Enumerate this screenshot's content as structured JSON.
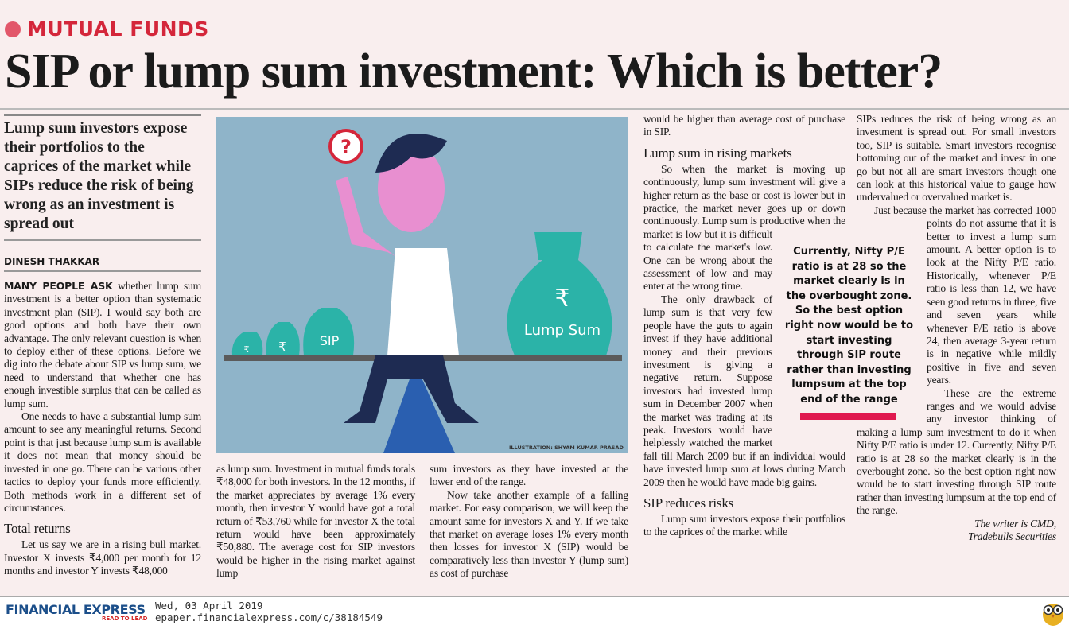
{
  "kicker": "MUTUAL FUNDS",
  "headline": "SIP or lump sum investment: Which is better?",
  "deck": "Lump sum investors expose their portfolios to the caprices of the market while SIPs reduce the risk of being wrong as an investment is spread out",
  "byline": "DINESH THAKKAR",
  "illustration": {
    "question_mark": "?",
    "rupee": "₹",
    "sip_label": "SIP",
    "lump_label": "Lump Sum",
    "credit": "ILLUSTRATION: SHYAM KUMAR PRASAD",
    "colors": {
      "background": "#8fb4c9",
      "bag": "#2bb3a8",
      "shirt": "#ffffff",
      "skin": "#e88fd0"
    }
  },
  "col1": {
    "lead": "MANY PEOPLE ASK",
    "p1": " whether lump sum investment is a better option than systematic investment plan (SIP). I would say both are good options and both have their own advantage. The only relevant question is when to deploy either of these options. Before we dig into the debate about SIP vs lump sum, we need to understand that whether one has enough investible surplus that can be called as lump sum.",
    "p2": "One needs to have a substantial lump sum amount to see any meaningful returns. Second point is that just because lump sum is available it does not mean that money should be invested in one go. There can be various other tactics to deploy your funds more efficiently. Both methods work in a different set of circumstances.",
    "h1": "Total returns",
    "p3": "Let us say we are in a rising bull market. Investor X invests ₹4,000 per month for 12 months and investor Y invests ₹48,000"
  },
  "col2": {
    "p1": "as lump sum. Investment in mutual funds totals ₹48,000 for both investors. In the 12 months, if the market appreciates by average 1% every month, then investor Y would have got a total return of ₹53,760 while for investor X the total return would have been approximately ₹50,880. The average cost for SIP investors would be higher in the rising market against lump"
  },
  "col3": {
    "p1": "sum investors as they have invested at the lower end of the range.",
    "p2": "Now take another example of a falling market. For easy comparison, we will keep the amount same for investors X and Y. If we take that market on average loses 1% every month then losses for investor X (SIP) would be comparatively less than investor Y (lump sum) as cost of purchase"
  },
  "col4": {
    "p1": "would be higher than average cost of purchase in SIP.",
    "h1": "Lump sum in rising markets",
    "p2": "So when the market is moving up continuously, lump sum investment will give a higher return as the base or cost is lower but in practice, the market never goes up or down continuously. Lump sum is productive when the market is low but it is difficult to calculate the market's low. One can be wrong about the assessment of low and may enter at the wrong time.",
    "p3": "The only drawback of lump sum is that very few people have the guts to again invest if they have additional money and their previous investment is giving a negative return. Suppose investors had invested lump sum in December 2007 when the market was trading at its peak. Investors would have helplessly watched the market fall till March 2009 but if an individual would have invested lump sum at lows during March 2009 then he would have made big gains.",
    "h2": "SIP reduces risks",
    "p4": "Lump sum investors expose their portfolios to the caprices of the market while"
  },
  "col5": {
    "p1": "SIPs reduces the risk of being wrong as an investment is spread out. For small investors too, SIP is suitable. Smart investors recognise bottoming out of the market and invest in one go but not all are smart investors though one can look at this historical value to gauge how undervalued or overvalued market is.",
    "p2": "Just because the market has corrected 1000 points do not assume that it is better to invest a lump sum amount. A better option is to look at the Nifty P/E ratio. Historically, whenever P/E ratio is less than 12, we have seen good returns in three, five and seven years while whenever P/E ratio is above 24, then average 3-year return is in negative while mildly positive in five and seven years.",
    "p3": "These are the extreme ranges and we would advise any investor thinking of making a lump sum investment to do it when Nifty P/E ratio is under 12. Currently, Nifty P/E ratio is at 28 so the market clearly is in the overbought zone. So the best option right now would be to start investing through SIP route rather than investing lumpsum at the top end of the range.",
    "signoff1": "The writer is CMD,",
    "signoff2": "Tradebulls Securities"
  },
  "pullquote": "Currently, Nifty P/E ratio is at 28 so the market clearly is in the overbought zone. So the best option right now would be to start investing through SIP route rather than investing lumpsum at the top end of the range",
  "footer": {
    "logo": "FINANCIAL EXPRESS",
    "tagline": "READ TO LEAD",
    "date": "Wed, 03 April 2019",
    "url": "epaper.financialexpress.com/c/38184549"
  },
  "colors": {
    "accent": "#d4263a",
    "pullquote_bar": "#e0194f",
    "logo_blue": "#1c4f8a",
    "page": "#f9eeee"
  }
}
